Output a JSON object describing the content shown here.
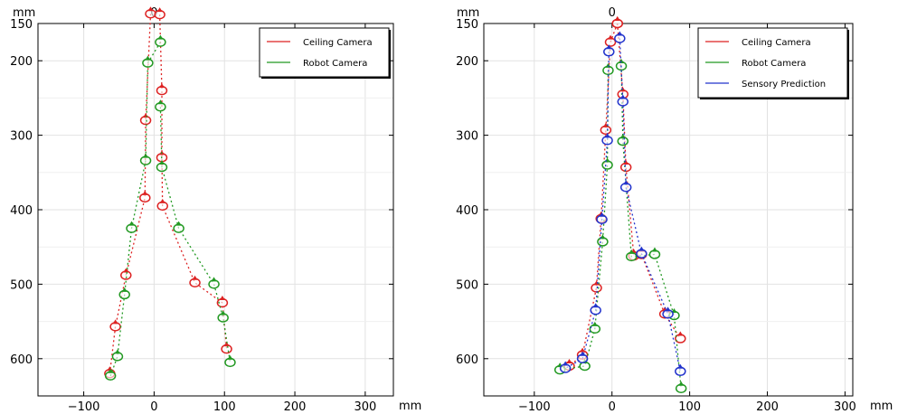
{
  "chart_data": [
    {
      "type": "scatter",
      "xlabel": "mm",
      "ylabel": "mm",
      "top_label": "0",
      "xlim": [
        -165,
        340
      ],
      "ylim": [
        150,
        650
      ],
      "y_inverted": true,
      "xticks": [
        -100,
        0,
        100,
        200,
        300
      ],
      "yticks": [
        150,
        200,
        300,
        400,
        500,
        600
      ],
      "grid": true,
      "legend_position": "top-right",
      "colors": {
        "Ceiling Camera": "#dd2222",
        "Robot Camera": "#229922"
      },
      "series": [
        {
          "name": "Ceiling Camera",
          "chains": [
            [
              [
                -5,
                137
              ],
              [
                -12,
                280
              ],
              [
                -13,
                384
              ],
              [
                -40,
                488
              ],
              [
                -55,
                557
              ],
              [
                -63,
                620
              ]
            ],
            [
              [
                8,
                138
              ],
              [
                11,
                240
              ],
              [
                11,
                330
              ],
              [
                12,
                395
              ],
              [
                58,
                498
              ],
              [
                97,
                525
              ],
              [
                103,
                587
              ]
            ]
          ]
        },
        {
          "name": "Robot Camera",
          "chains": [
            [
              [
                9,
                175
              ],
              [
                -9,
                203
              ],
              [
                -12,
                334
              ],
              [
                -32,
                425
              ],
              [
                -42,
                514
              ],
              [
                -52,
                597
              ],
              [
                -62,
                623
              ]
            ],
            [
              [
                9,
                262
              ],
              [
                11,
                343
              ],
              [
                35,
                425
              ],
              [
                85,
                500
              ],
              [
                98,
                545
              ],
              [
                108,
                605
              ]
            ]
          ]
        }
      ]
    },
    {
      "type": "scatter",
      "xlabel": "mm",
      "ylabel": "mm",
      "top_label": "0",
      "xlim": [
        -165,
        310
      ],
      "ylim": [
        150,
        650
      ],
      "y_inverted": true,
      "xticks": [
        -100,
        0,
        100,
        200,
        300
      ],
      "yticks": [
        150,
        200,
        300,
        400,
        500,
        600
      ],
      "grid": true,
      "legend_position": "top-right",
      "colors": {
        "Ceiling Camera": "#dd2222",
        "Robot Camera": "#229922",
        "Sensory Prediction": "#2233cc"
      },
      "series": [
        {
          "name": "Ceiling Camera",
          "chains": [
            [
              [
                7,
                150
              ],
              [
                -2,
                175
              ],
              [
                -8,
                293
              ],
              [
                -14,
                412
              ],
              [
                -20,
                505
              ],
              [
                -38,
                595
              ],
              [
                -55,
                610
              ]
            ],
            [
              [
                7,
                150
              ],
              [
                14,
                245
              ],
              [
                18,
                343
              ],
              [
                28,
                462
              ],
              [
                38,
                460
              ],
              [
                68,
                540
              ],
              [
                88,
                573
              ]
            ]
          ]
        },
        {
          "name": "Robot Camera",
          "chains": [
            [
              [
                -5,
                213
              ],
              [
                -6,
                340
              ],
              [
                -12,
                443
              ],
              [
                -22,
                560
              ],
              [
                -35,
                610
              ],
              [
                -67,
                615
              ]
            ],
            [
              [
                12,
                207
              ],
              [
                14,
                308
              ],
              [
                25,
                463
              ],
              [
                55,
                460
              ],
              [
                80,
                542
              ],
              [
                89,
                640
              ]
            ]
          ]
        },
        {
          "name": "Sensory Prediction",
          "chains": [
            [
              [
                -4,
                188
              ],
              [
                -6,
                307
              ],
              [
                -13,
                413
              ],
              [
                -21,
                535
              ],
              [
                -38,
                600
              ],
              [
                -60,
                613
              ]
            ],
            [
              [
                10,
                170
              ],
              [
                14,
                255
              ],
              [
                18,
                370
              ],
              [
                38,
                459
              ],
              [
                72,
                540
              ],
              [
                88,
                617
              ]
            ]
          ]
        }
      ]
    }
  ]
}
